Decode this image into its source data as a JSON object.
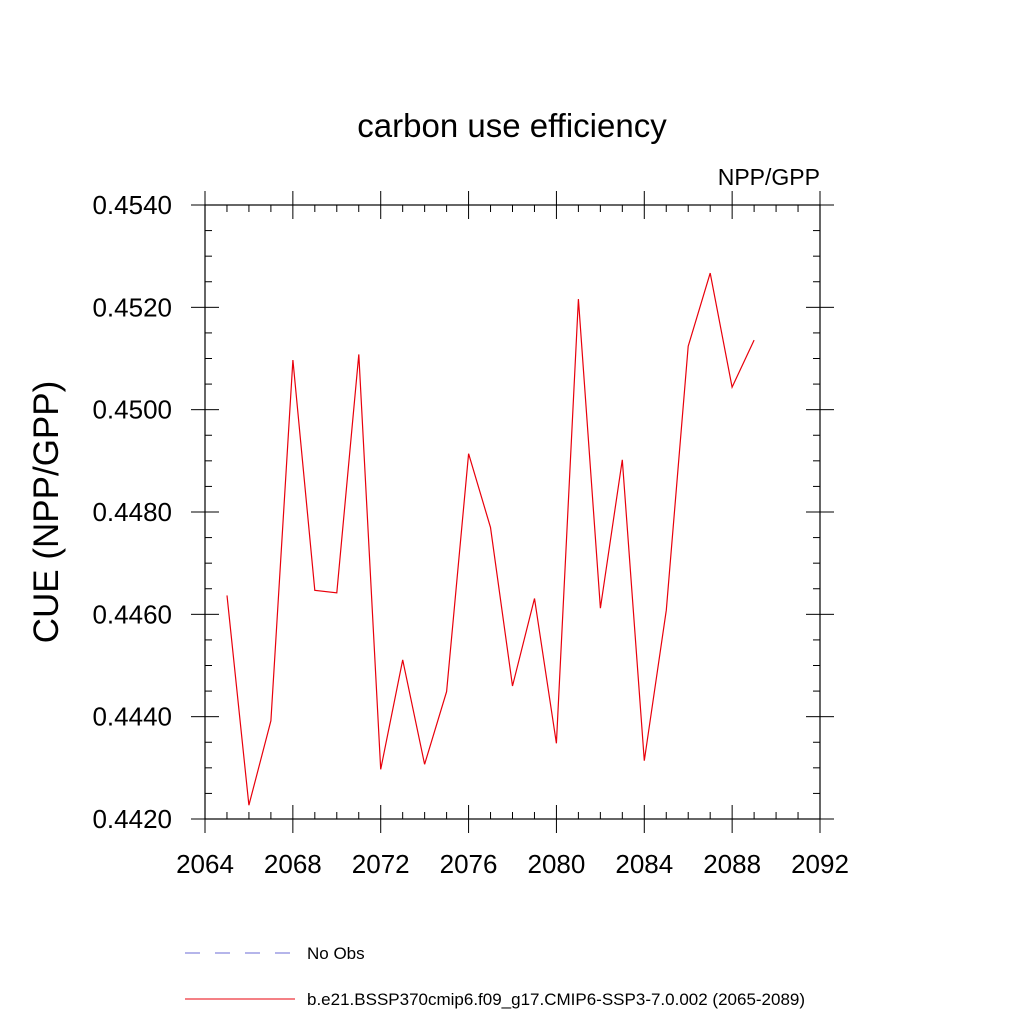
{
  "chart_data": {
    "type": "line",
    "title": "carbon use efficiency",
    "subtitle": "NPP/GPP",
    "xlabel": "",
    "ylabel": "CUE  (NPP/GPP)",
    "xlim": [
      2064,
      2092
    ],
    "ylim": [
      0.442,
      0.454
    ],
    "x_ticks": [
      "2064",
      "2068",
      "2072",
      "2076",
      "2080",
      "2084",
      "2088",
      "2092"
    ],
    "y_ticks": [
      "0.4420",
      "0.4440",
      "0.4460",
      "0.4480",
      "0.4500",
      "0.4520",
      "0.4540"
    ],
    "grid": false,
    "legend_position": "bottom",
    "colors": {
      "model": "#e8000b",
      "obs": "#6b6bd6"
    },
    "legend": [
      {
        "label": "No Obs",
        "style": "dashed",
        "color": "#6b6bd6"
      },
      {
        "label": "b.e21.BSSP370cmip6.f09_g17.CMIP6-SSP3-7.0.002 (2065-2089)",
        "style": "solid",
        "color": "#e8000b"
      }
    ],
    "series": [
      {
        "x": [
          2065,
          2066,
          2067,
          2068,
          2069,
          2070,
          2071,
          2072,
          2073,
          2074,
          2075,
          2076,
          2077,
          2078,
          2079,
          2080,
          2081,
          2082,
          2083,
          2084,
          2085,
          2086,
          2087,
          2088,
          2089
        ],
        "values": [
          0.44637,
          0.44227,
          0.44392,
          0.45097,
          0.44647,
          0.44642,
          0.45108,
          0.44297,
          0.44511,
          0.44307,
          0.44449,
          0.44914,
          0.4477,
          0.4446,
          0.44631,
          0.44348,
          0.45216,
          0.44612,
          0.44902,
          0.44314,
          0.44608,
          0.45124,
          0.45267,
          0.45044,
          0.45136
        ]
      }
    ]
  }
}
